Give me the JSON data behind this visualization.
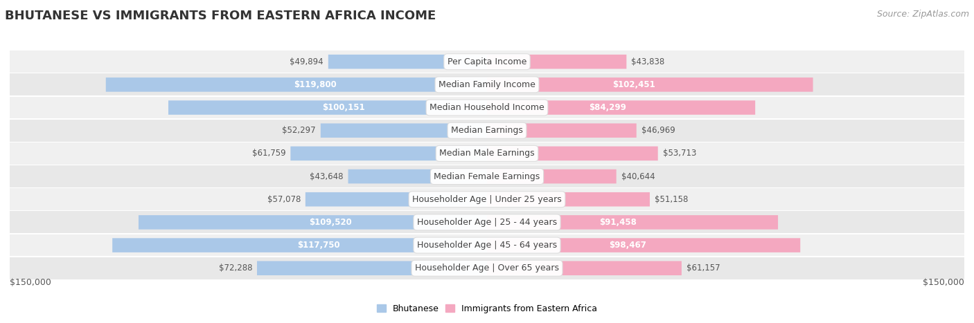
{
  "title": "BHUTANESE VS IMMIGRANTS FROM EASTERN AFRICA INCOME",
  "source": "Source: ZipAtlas.com",
  "categories": [
    "Per Capita Income",
    "Median Family Income",
    "Median Household Income",
    "Median Earnings",
    "Median Male Earnings",
    "Median Female Earnings",
    "Householder Age | Under 25 years",
    "Householder Age | 25 - 44 years",
    "Householder Age | 45 - 64 years",
    "Householder Age | Over 65 years"
  ],
  "bhutanese_values": [
    49894,
    119800,
    100151,
    52297,
    61759,
    43648,
    57078,
    109520,
    117750,
    72288
  ],
  "eastern_africa_values": [
    43838,
    102451,
    84299,
    46969,
    53713,
    40644,
    51158,
    91458,
    98467,
    61157
  ],
  "bhutanese_labels": [
    "$49,894",
    "$119,800",
    "$100,151",
    "$52,297",
    "$61,759",
    "$43,648",
    "$57,078",
    "$109,520",
    "$117,750",
    "$72,288"
  ],
  "eastern_africa_labels": [
    "$43,838",
    "$102,451",
    "$84,299",
    "$46,969",
    "$53,713",
    "$40,644",
    "$51,158",
    "$91,458",
    "$98,467",
    "$61,157"
  ],
  "bhutanese_color": "#7bafd4",
  "eastern_africa_color": "#f07096",
  "bhutanese_color_light": "#aac8e8",
  "eastern_africa_color_light": "#f4a8c0",
  "label_threshold": 75000,
  "max_value": 150000,
  "row_bg_even": "#f0f0f0",
  "row_bg_odd": "#e8e8e8",
  "legend_label_1": "Bhutanese",
  "legend_label_2": "Immigrants from Eastern Africa",
  "xlabel_left": "$150,000",
  "xlabel_right": "$150,000",
  "background_color": "#ffffff",
  "title_fontsize": 13,
  "source_fontsize": 9,
  "label_fontsize": 8.5,
  "category_fontsize": 9
}
